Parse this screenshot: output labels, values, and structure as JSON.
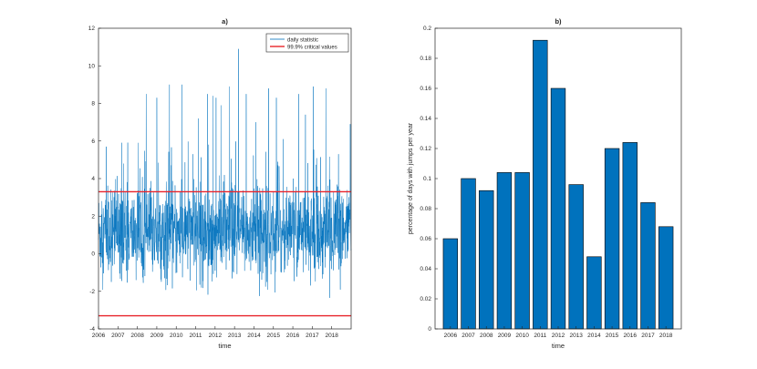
{
  "chart_data": [
    {
      "type": "line",
      "title": "a)",
      "xlabel": "time",
      "ylabel": "",
      "xlim": [
        2006,
        2019
      ],
      "ylim": [
        -4,
        12
      ],
      "xticks": [
        "2006",
        "2007",
        "2008",
        "2009",
        "2010",
        "2011",
        "2012",
        "2013",
        "2014",
        "2015",
        "2016",
        "2017",
        "2018"
      ],
      "yticks": [
        "-4",
        "-2",
        "0",
        "2",
        "4",
        "6",
        "8",
        "10",
        "12"
      ],
      "legend_position": "top-right",
      "series": [
        {
          "name": "daily statistic",
          "color": "#0072BD",
          "description_stats": {
            "typical_low": -1.5,
            "typical_high": 4.5,
            "max": 10.9,
            "min": -2.9
          },
          "spikes": [
            {
              "x": 2006.4,
              "y": 5.7
            },
            {
              "x": 2007.3,
              "y": 4.8
            },
            {
              "x": 2008.05,
              "y": 5.9
            },
            {
              "x": 2008.45,
              "y": 8.5
            },
            {
              "x": 2009.0,
              "y": 8.3
            },
            {
              "x": 2009.65,
              "y": 9.0
            },
            {
              "x": 2010.3,
              "y": 9.0
            },
            {
              "x": 2010.85,
              "y": 5.3
            },
            {
              "x": 2011.15,
              "y": 7.2
            },
            {
              "x": 2011.6,
              "y": 8.5
            },
            {
              "x": 2011.9,
              "y": 8.4
            },
            {
              "x": 2012.05,
              "y": 8.3
            },
            {
              "x": 2012.3,
              "y": 7.9
            },
            {
              "x": 2012.75,
              "y": 8.9
            },
            {
              "x": 2013.2,
              "y": 10.9
            },
            {
              "x": 2013.6,
              "y": 8.5
            },
            {
              "x": 2014.1,
              "y": 7.0
            },
            {
              "x": 2014.75,
              "y": 8.8
            },
            {
              "x": 2015.15,
              "y": 8.3
            },
            {
              "x": 2015.5,
              "y": 6.1
            },
            {
              "x": 2016.3,
              "y": 8.5
            },
            {
              "x": 2016.65,
              "y": 7.4
            },
            {
              "x": 2017.05,
              "y": 8.9
            },
            {
              "x": 2017.7,
              "y": 8.8
            },
            {
              "x": 2018.35,
              "y": 5.3
            },
            {
              "x": 2018.95,
              "y": 6.9
            }
          ]
        },
        {
          "name": "99.9% critical values",
          "color": "#E8242B",
          "values": [
            3.3,
            -3.3
          ]
        }
      ]
    },
    {
      "type": "bar",
      "title": "b)",
      "xlabel": "time",
      "ylabel": "percentage of days with jumps per year",
      "categories": [
        "2006",
        "2007",
        "2008",
        "2009",
        "2010",
        "2011",
        "2012",
        "2013",
        "2014",
        "2015",
        "2016",
        "2017",
        "2018"
      ],
      "values": [
        0.06,
        0.1,
        0.092,
        0.104,
        0.104,
        0.192,
        0.16,
        0.096,
        0.048,
        0.12,
        0.124,
        0.084,
        0.068
      ],
      "ylim": [
        0,
        0.2
      ],
      "yticks": [
        "0",
        "0.02",
        "0.04",
        "0.06",
        "0.08",
        "0.1",
        "0.12",
        "0.14",
        "0.16",
        "0.18",
        "0.2"
      ],
      "color": "#0072BD"
    }
  ]
}
